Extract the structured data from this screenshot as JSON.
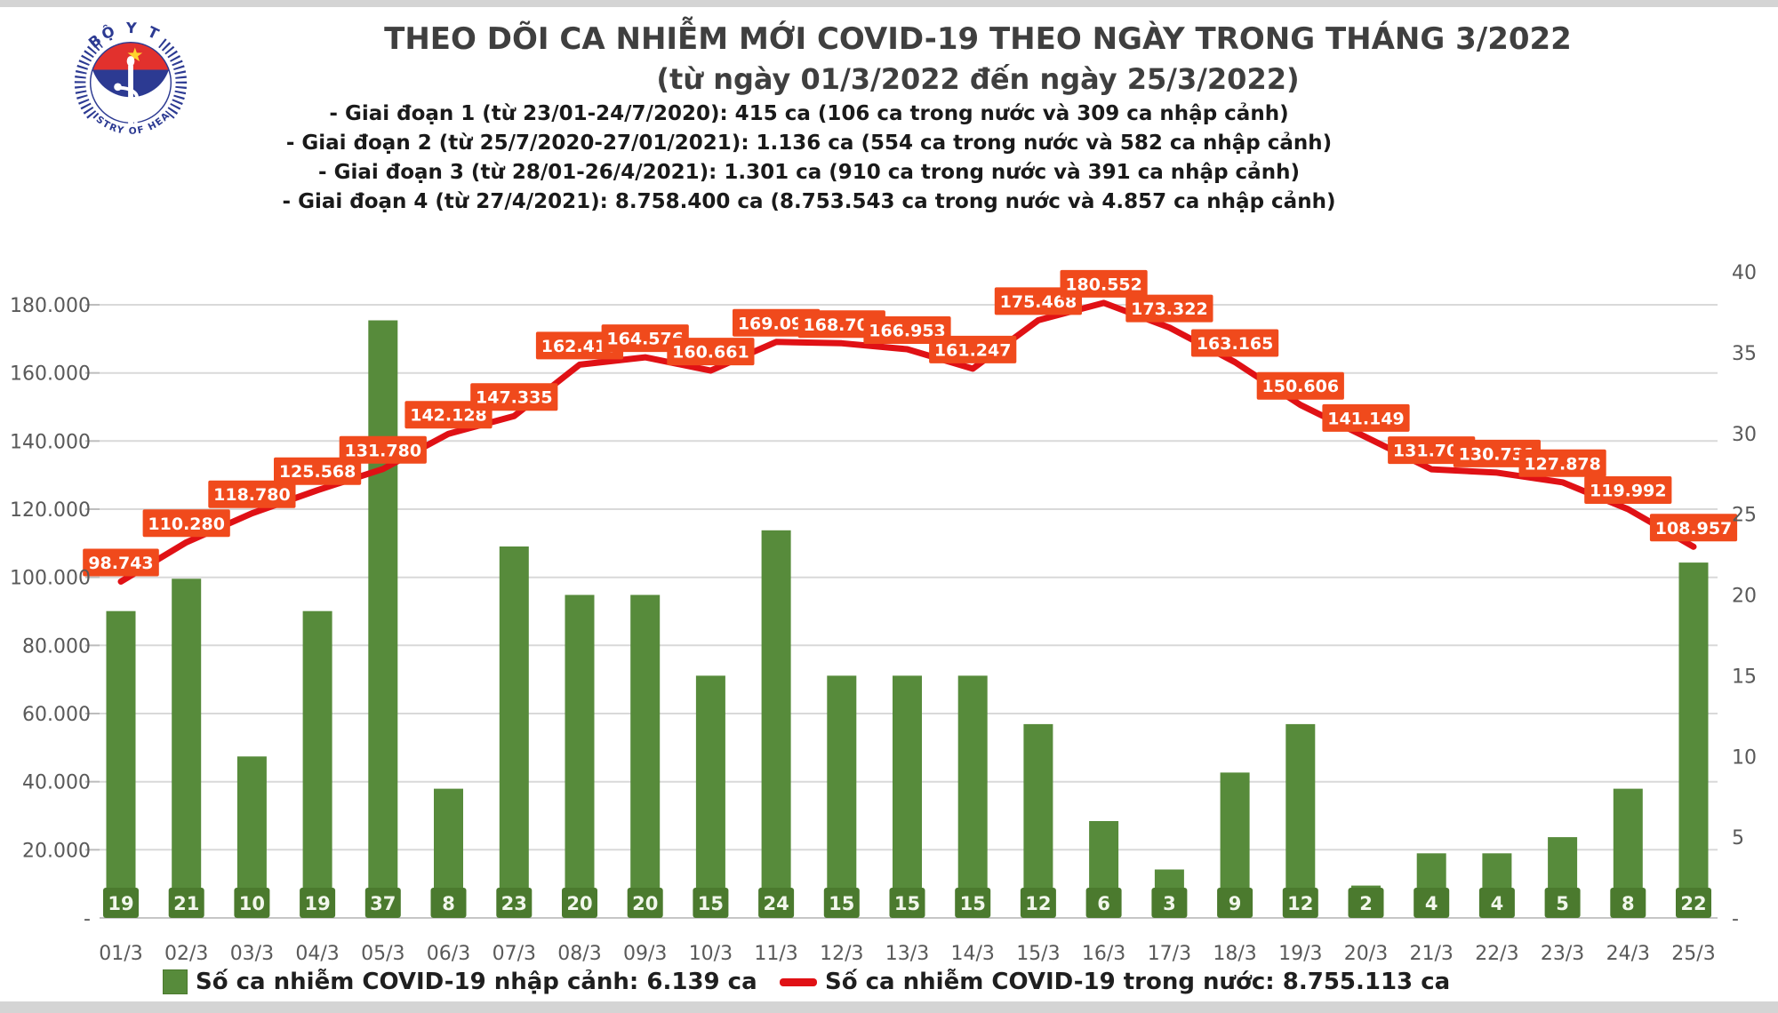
{
  "header": {
    "logo": {
      "top_text": "BỘ Y TẾ",
      "bottom_text": "MINISTRY OF HEALTH"
    },
    "title": "THEO DÕI CA NHIỄM MỚI COVID-19 THEO NGÀY TRONG THÁNG 3/2022",
    "subtitle": "(từ ngày 01/3/2022 đến ngày 25/3/2022)",
    "notes": [
      "- Giai đoạn 1 (từ 23/01-24/7/2020): 415 ca (106 ca trong nước và 309 ca nhập cảnh)",
      "- Giai đoạn 2 (từ 25/7/2020-27/01/2021): 1.136 ca (554 ca trong nước và 582 ca nhập cảnh)",
      "- Giai đoạn 3 (từ 28/01-26/4/2021): 1.301 ca (910 ca trong nước và 391 ca nhập cảnh)",
      "- Giai đoạn 4 (từ 27/4/2021): 8.758.400 ca (8.753.543 ca trong nước và 4.857 ca nhập cảnh)"
    ]
  },
  "chart_data": {
    "type": "bar+line",
    "categories": [
      "01/3",
      "02/3",
      "03/3",
      "04/3",
      "05/3",
      "06/3",
      "07/3",
      "08/3",
      "09/3",
      "10/3",
      "11/3",
      "12/3",
      "13/3",
      "14/3",
      "15/3",
      "16/3",
      "17/3",
      "18/3",
      "19/3",
      "20/3",
      "21/3",
      "22/3",
      "23/3",
      "24/3",
      "25/3"
    ],
    "series": [
      {
        "name": "Số ca nhiễm COVID-19 nhập cảnh",
        "type": "bar",
        "axis": "right",
        "color": "#578b3b",
        "badge_color": "#4b7a2e",
        "values": [
          19,
          21,
          10,
          19,
          37,
          8,
          23,
          20,
          20,
          15,
          24,
          15,
          15,
          15,
          12,
          6,
          3,
          9,
          12,
          2,
          4,
          4,
          5,
          8,
          22
        ]
      },
      {
        "name": "Số ca nhiễm COVID-19 trong nước",
        "type": "line",
        "axis": "left",
        "color": "#e01115",
        "label_bg": "#f04a1c",
        "values": [
          98743,
          110280,
          118780,
          125568,
          131780,
          142128,
          147335,
          162415,
          164576,
          160661,
          169090,
          168704,
          166953,
          161247,
          175468,
          180552,
          173322,
          163165,
          150606,
          141149,
          131709,
          130731,
          127878,
          119992,
          108957
        ],
        "value_labels": [
          "98.743",
          "110.280",
          "118.780",
          "125.568",
          "131.780",
          "142.128",
          "147.335",
          "162.415",
          "164.576",
          "160.661",
          "169.090",
          "168.704",
          "166.953",
          "161.247",
          "175.468",
          "180.552",
          "173.322",
          "163.165",
          "150.606",
          "141.149",
          "131.709",
          "130.731",
          "127.878",
          "119.992",
          "108.957"
        ]
      }
    ],
    "left_axis": {
      "min": 0,
      "max": 180000,
      "step": 20000,
      "tick_labels": [
        "180.000",
        "160.000",
        "140.000",
        "120.000",
        "100.000",
        "80.000",
        "60.000",
        "40.000",
        "20.000",
        "-"
      ]
    },
    "right_axis": {
      "min": 0,
      "max": 40,
      "step": 5,
      "tick_labels": [
        "40",
        "35",
        "30",
        "25",
        "20",
        "15",
        "10",
        "5",
        "-"
      ]
    },
    "grid": true,
    "legend_position": "bottom",
    "legend": [
      "Số ca nhiễm COVID-19 nhập cảnh: 6.139 ca",
      "Số ca nhiễm COVID-19 trong nước: 8.755.113 ca"
    ]
  },
  "colors": {
    "grid": "#d9d9d9",
    "baseline": "#c6c6c6",
    "axis_text": "#595959",
    "title_text": "#3f3f3f",
    "note_text": "#1a1a1a",
    "strip": "#d4d4d4",
    "bar": "#578b3b",
    "bar_badge": "#4b7a2e",
    "line": "#e01115",
    "line_label_bg": "#f04a1c",
    "logo_navy": "#2c3a92",
    "logo_red": "#e2312d",
    "logo_star": "#ffd42e"
  }
}
